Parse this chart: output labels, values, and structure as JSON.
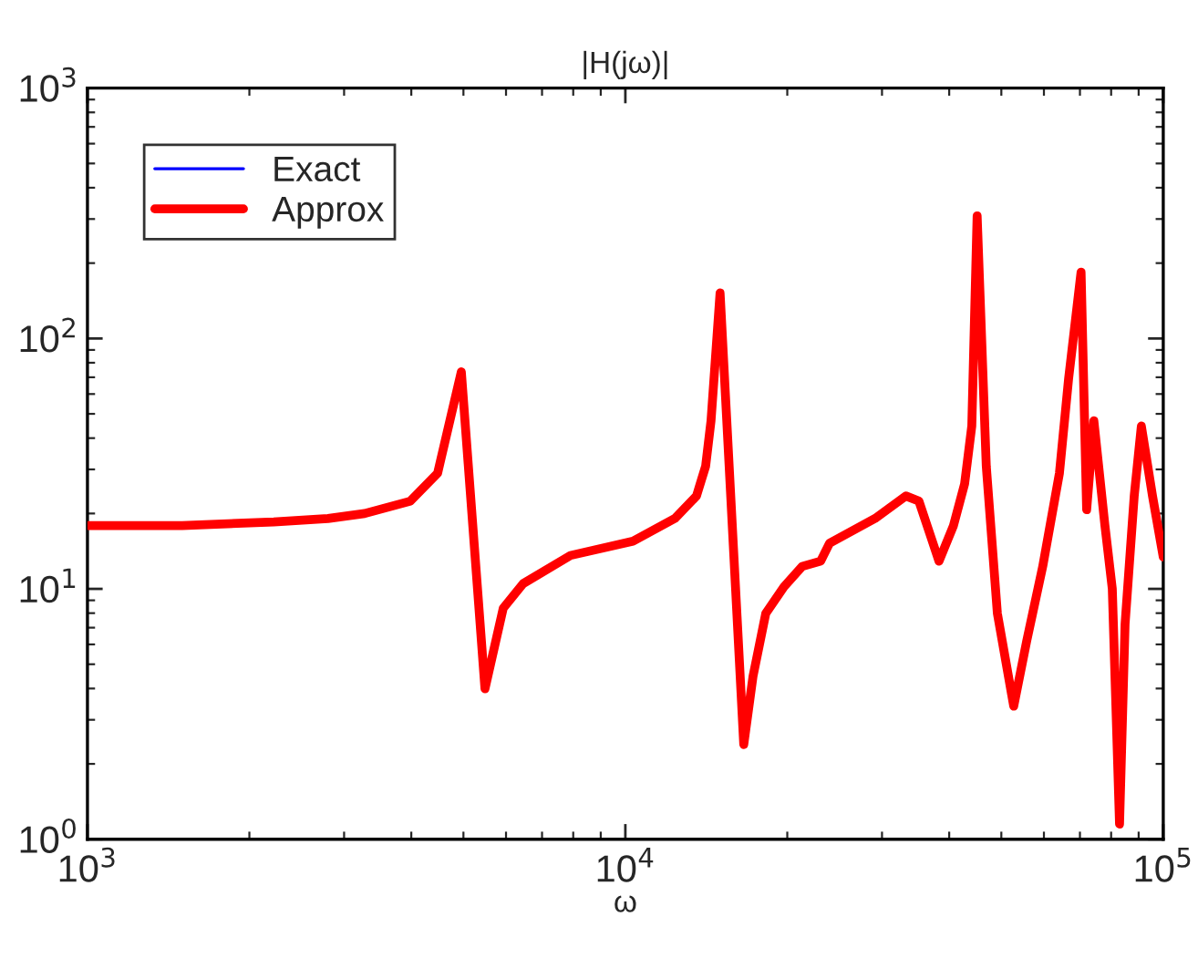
{
  "chart_data": {
    "type": "line",
    "title": "|H(jω)|",
    "xlabel": "ω",
    "x": [
      1000,
      1500,
      2220,
      2800,
      3275,
      3981,
      4477,
      4955,
      5483,
      5929,
      6457,
      7907,
      10330,
      12360,
      13560,
      14100,
      14430,
      15000,
      16600,
      17270,
      18240,
      19720,
      21330,
      23070,
      23960,
      29120,
      33230,
      35140,
      38290,
      40740,
      42730,
      44060,
      45080,
      46880,
      49160,
      52720,
      55720,
      59700,
      64120,
      66680,
      70340,
      72040,
      74300,
      77900,
      80400,
      82930,
      84920,
      88310,
      91050,
      95500,
      100000
    ],
    "series": [
      {
        "name": "Exact",
        "color": "#0000ff",
        "values": [
          null,
          null,
          null,
          null,
          null,
          null,
          null,
          null,
          null,
          null,
          null,
          null,
          null,
          null,
          null,
          null,
          null,
          null,
          null,
          null,
          null,
          null,
          null,
          null,
          null,
          null,
          null,
          null,
          null,
          null,
          null,
          null,
          null,
          null,
          null,
          null,
          null,
          null,
          null,
          null,
          null,
          null,
          null,
          null,
          null,
          null,
          null,
          null,
          null,
          null,
          null
        ]
      },
      {
        "name": "Approx",
        "color": "#ff0000",
        "values": [
          17.9,
          17.9,
          18.5,
          19.1,
          20.0,
          22.4,
          29.0,
          73.6,
          3.99,
          8.37,
          10.5,
          13.6,
          15.5,
          19.1,
          23.5,
          30.9,
          46.9,
          152,
          2.39,
          4.47,
          7.98,
          10.2,
          12.3,
          12.9,
          15.2,
          19.1,
          23.5,
          22.4,
          12.9,
          17.9,
          26.3,
          44.7,
          309,
          30.9,
          7.98,
          3.4,
          6.17,
          12.3,
          29.0,
          69.0,
          184,
          20.7,
          46.9,
          17.9,
          10.0,
          1.15,
          7.24,
          23.5,
          44.7,
          23.5,
          13.4
        ]
      }
    ],
    "log": "xy",
    "xlim": [
      1000,
      100000
    ],
    "ylim": [
      1,
      1000
    ],
    "xticks": [
      {
        "value": 1000,
        "label": "10$^{3}$"
      },
      {
        "value": 10000,
        "label": "10$^{4}$"
      },
      {
        "value": 100000,
        "label": "10$^{5}$"
      }
    ],
    "yticks": [
      {
        "value": 1,
        "label": "10$^{0}$"
      },
      {
        "value": 10,
        "label": "10$^{1}$"
      },
      {
        "value": 100,
        "label": "10$^{2}$"
      },
      {
        "value": 1000,
        "label": "10$^{3}$"
      }
    ],
    "legend": "top left",
    "grid": false,
    "marker": "none",
    "line_style": "solid"
  }
}
